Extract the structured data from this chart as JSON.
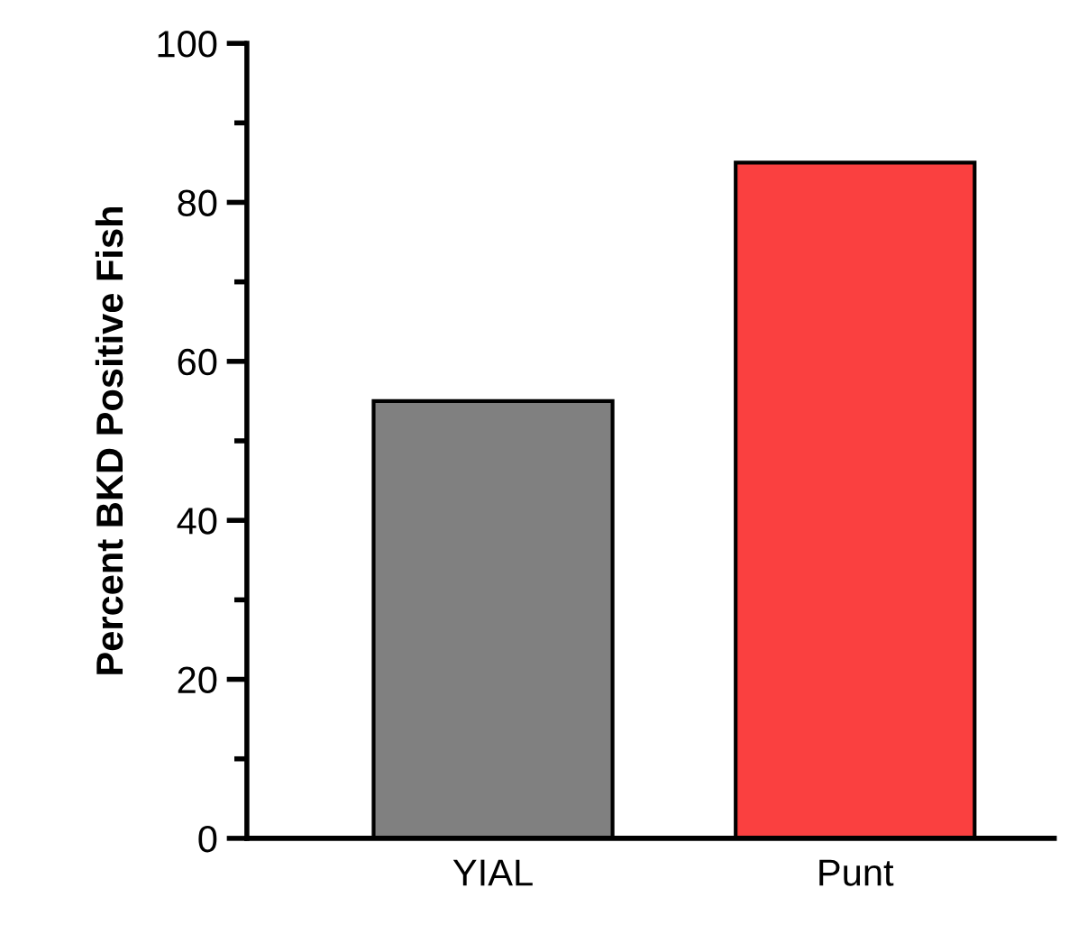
{
  "chart_data": {
    "type": "bar",
    "ylabel": "Percent BKD Positive Fish",
    "categories": [
      "YIAL",
      "Punt"
    ],
    "values": [
      55,
      85
    ],
    "colors": [
      "#808080",
      "#fa4040"
    ],
    "ylim": [
      0,
      100
    ],
    "yticks": [
      0,
      {
        "value": 10,
        "label": null
      },
      20,
      {
        "value": 30,
        "label": null
      },
      40,
      {
        "value": 50,
        "label": null
      },
      60,
      {
        "value": 70,
        "label": null
      },
      80,
      {
        "value": 90,
        "label": null
      },
      100
    ],
    "grid": false,
    "legend": false
  }
}
